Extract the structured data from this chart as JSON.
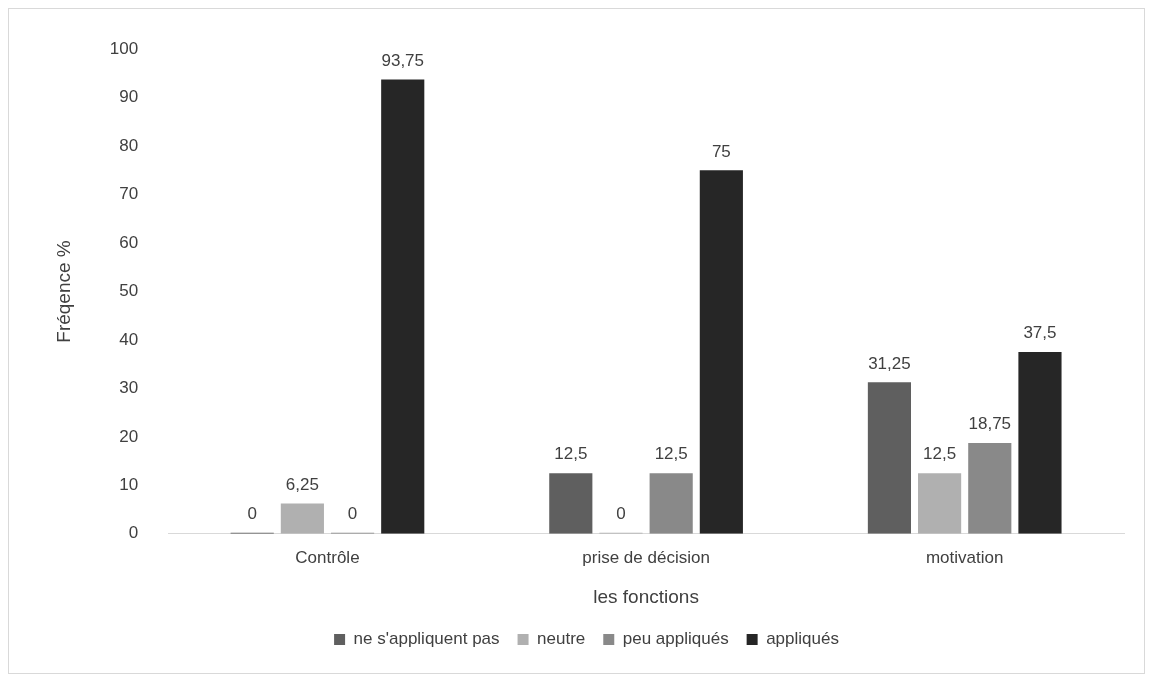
{
  "chart_data": {
    "type": "bar",
    "xlabel": "les fonctions",
    "ylabel": "Fréqence %",
    "categories": [
      "Contrôle",
      "prise de décision",
      "motivation"
    ],
    "series": [
      {
        "name": "ne s'appliquent pas",
        "color": "#5f5f5f",
        "values": [
          0,
          12.5,
          31.25
        ],
        "value_labels": [
          "0",
          "12,5",
          "31,25"
        ]
      },
      {
        "name": "neutre",
        "color": "#b0b0b0",
        "values": [
          6.25,
          0,
          12.5
        ],
        "value_labels": [
          "6,25",
          "0",
          "12,5"
        ]
      },
      {
        "name": "peu appliqués",
        "color": "#898989",
        "values": [
          0,
          12.5,
          18.75
        ],
        "value_labels": [
          "0",
          "12,5",
          "18,75"
        ]
      },
      {
        "name": "appliqués",
        "color": "#262626",
        "values": [
          93.75,
          75,
          37.5
        ],
        "value_labels": [
          "93,75",
          "75",
          "37,5"
        ]
      }
    ],
    "ylim": [
      0,
      100
    ],
    "yticks": [
      0,
      10,
      20,
      30,
      40,
      50,
      60,
      70,
      80,
      90,
      100
    ],
    "grid": false,
    "legend": "bottom"
  }
}
